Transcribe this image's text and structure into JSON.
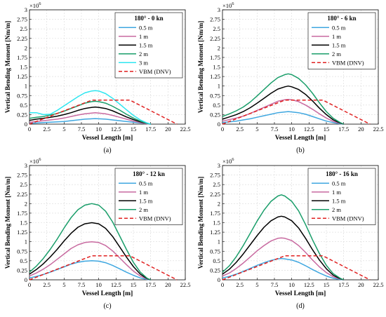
{
  "chart_data": [
    {
      "type": "line",
      "panel_label": "(a)",
      "title": "180° - 0 kn",
      "xlabel": "Vessel Length [m]",
      "ylabel": "Vertical Bending Moment [Nm/m]",
      "y_exponent": "×10",
      "y_exponent_power": "6",
      "xlim": [
        0,
        22.5
      ],
      "ylim": [
        0,
        3
      ],
      "x_ticks": [
        "0",
        "2.5",
        "5",
        "7.5",
        "10",
        "12.5",
        "15",
        "17.5",
        "20",
        "22.5"
      ],
      "y_ticks": [
        "0",
        "0.25",
        "0.5",
        "0.75",
        "1",
        "1.25",
        "1.5",
        "1.75",
        "2",
        "2.25",
        "2.5",
        "2.75",
        "3"
      ],
      "grid": true,
      "legend_position": "top-right",
      "series": [
        {
          "name": "0.5 m",
          "color": "#3fa7e0",
          "style": "solid",
          "x": [
            0,
            1,
            2,
            3,
            4,
            5,
            6,
            7,
            8,
            9,
            9.5,
            10,
            11,
            12,
            13,
            14,
            15,
            16,
            17,
            17.5
          ],
          "y": [
            0.02,
            0.03,
            0.04,
            0.05,
            0.06,
            0.07,
            0.09,
            0.11,
            0.13,
            0.14,
            0.145,
            0.14,
            0.13,
            0.11,
            0.09,
            0.07,
            0.05,
            0.03,
            0.01,
            0
          ]
        },
        {
          "name": "1 m",
          "color": "#c86aa0",
          "style": "solid",
          "x": [
            0,
            1,
            2,
            3,
            4,
            5,
            6,
            7,
            8,
            9,
            9.5,
            10,
            11,
            12,
            13,
            14,
            15,
            16,
            17,
            17.5
          ],
          "y": [
            0.05,
            0.07,
            0.09,
            0.11,
            0.13,
            0.16,
            0.2,
            0.24,
            0.27,
            0.29,
            0.3,
            0.29,
            0.27,
            0.23,
            0.18,
            0.13,
            0.08,
            0.04,
            0.01,
            0
          ]
        },
        {
          "name": "1.5 m",
          "color": "#000000",
          "style": "solid",
          "x": [
            0,
            1,
            2,
            3,
            4,
            5,
            6,
            7,
            8,
            9,
            9.5,
            10,
            11,
            12,
            13,
            14,
            15,
            16,
            17,
            17.5
          ],
          "y": [
            0.1,
            0.13,
            0.15,
            0.18,
            0.21,
            0.25,
            0.3,
            0.36,
            0.41,
            0.44,
            0.45,
            0.44,
            0.41,
            0.35,
            0.27,
            0.19,
            0.12,
            0.06,
            0.02,
            0
          ]
        },
        {
          "name": "2 m",
          "color": "#1a9e6a",
          "style": "solid",
          "x": [
            0,
            1,
            2,
            3,
            4,
            5,
            6,
            7,
            8,
            9,
            9.5,
            10,
            11,
            12,
            13,
            14,
            15,
            16,
            17,
            17.5
          ],
          "y": [
            0.15,
            0.18,
            0.2,
            0.24,
            0.28,
            0.34,
            0.41,
            0.48,
            0.55,
            0.59,
            0.6,
            0.59,
            0.55,
            0.47,
            0.37,
            0.26,
            0.16,
            0.08,
            0.02,
            0
          ]
        },
        {
          "name": "3 m",
          "color": "#2ee6f0",
          "style": "solid",
          "x": [
            0,
            1,
            2,
            3,
            4,
            5,
            6,
            7,
            8,
            9,
            9.5,
            10,
            11,
            12,
            13,
            14,
            15,
            16,
            17,
            17.5
          ],
          "y": [
            0.3,
            0.3,
            0.25,
            0.26,
            0.36,
            0.48,
            0.6,
            0.72,
            0.82,
            0.87,
            0.88,
            0.87,
            0.8,
            0.68,
            0.53,
            0.38,
            0.23,
            0.11,
            0.03,
            0
          ]
        },
        {
          "name": "VBM (DNV)",
          "color": "#e02020",
          "style": "dashed",
          "x": [
            0,
            9,
            14.5,
            21.3
          ],
          "y": [
            0,
            0.63,
            0.63,
            0
          ]
        }
      ]
    },
    {
      "type": "line",
      "panel_label": "(b)",
      "title": "180° - 6 kn",
      "xlabel": "Vessel Length [m]",
      "ylabel": "Vertical Bending Moment [Nm/m]",
      "y_exponent": "×10",
      "y_exponent_power": "6",
      "xlim": [
        0,
        22.5
      ],
      "ylim": [
        0,
        3
      ],
      "x_ticks": [
        "0",
        "2.5",
        "5",
        "7.5",
        "10",
        "12.5",
        "15",
        "17.5",
        "20",
        "22.5"
      ],
      "y_ticks": [
        "0",
        "0.25",
        "0.5",
        "0.75",
        "1",
        "1.25",
        "1.5",
        "1.75",
        "2",
        "2.25",
        "2.5",
        "2.75",
        "3"
      ],
      "grid": true,
      "legend_position": "top-right",
      "series": [
        {
          "name": "0.5 m",
          "color": "#3fa7e0",
          "style": "solid",
          "x": [
            0,
            1,
            2,
            3,
            4,
            5,
            6,
            7,
            8,
            9,
            9.5,
            10,
            11,
            12,
            13,
            14,
            15,
            16,
            17,
            17.5
          ],
          "y": [
            0.04,
            0.06,
            0.08,
            0.11,
            0.14,
            0.18,
            0.22,
            0.26,
            0.3,
            0.32,
            0.33,
            0.32,
            0.3,
            0.26,
            0.2,
            0.14,
            0.08,
            0.04,
            0.01,
            0
          ]
        },
        {
          "name": "1 m",
          "color": "#c86aa0",
          "style": "solid",
          "x": [
            0,
            1,
            2,
            3,
            4,
            5,
            6,
            7,
            8,
            9,
            9.5,
            10,
            11,
            12,
            13,
            14,
            15,
            16,
            17,
            17.5
          ],
          "y": [
            0.08,
            0.12,
            0.16,
            0.21,
            0.28,
            0.36,
            0.44,
            0.52,
            0.6,
            0.64,
            0.65,
            0.64,
            0.59,
            0.5,
            0.39,
            0.27,
            0.16,
            0.07,
            0.02,
            0
          ]
        },
        {
          "name": "1.5 m",
          "color": "#000000",
          "style": "solid",
          "x": [
            0,
            1,
            2,
            3,
            4,
            5,
            6,
            7,
            8,
            9,
            9.5,
            10,
            11,
            12,
            13,
            14,
            15,
            16,
            17,
            17.5
          ],
          "y": [
            0.13,
            0.19,
            0.25,
            0.33,
            0.43,
            0.55,
            0.68,
            0.81,
            0.92,
            0.98,
            1.0,
            0.98,
            0.91,
            0.78,
            0.61,
            0.42,
            0.25,
            0.11,
            0.03,
            0
          ]
        },
        {
          "name": "2 m",
          "color": "#1a9e6a",
          "style": "solid",
          "x": [
            0,
            1,
            2,
            3,
            4,
            5,
            6,
            7,
            8,
            9,
            9.5,
            10,
            11,
            12,
            13,
            14,
            15,
            16,
            17,
            17.5
          ],
          "y": [
            0.2,
            0.27,
            0.35,
            0.45,
            0.58,
            0.74,
            0.91,
            1.08,
            1.22,
            1.3,
            1.32,
            1.3,
            1.2,
            1.03,
            0.81,
            0.56,
            0.33,
            0.15,
            0.04,
            0
          ]
        },
        {
          "name": "VBM (DNV)",
          "color": "#e02020",
          "style": "dashed",
          "x": [
            0,
            9,
            14.5,
            21.3
          ],
          "y": [
            0,
            0.63,
            0.63,
            0
          ]
        }
      ]
    },
    {
      "type": "line",
      "panel_label": "(c)",
      "title": "180° - 12 kn",
      "xlabel": "Vessel Length [m]",
      "ylabel": "Vertical Bending Moment [Nm/m]",
      "y_exponent": "×10",
      "y_exponent_power": "6",
      "xlim": [
        0,
        22.5
      ],
      "ylim": [
        0,
        3
      ],
      "x_ticks": [
        "0",
        "2.5",
        "5",
        "7.5",
        "10",
        "12.5",
        "15",
        "17.5",
        "20",
        "22.5"
      ],
      "y_ticks": [
        "0",
        "0.25",
        "0.5",
        "0.75",
        "1",
        "1.25",
        "1.5",
        "1.75",
        "2",
        "2.25",
        "2.5",
        "2.75",
        "3"
      ],
      "grid": true,
      "legend_position": "top-right",
      "series": [
        {
          "name": "0.5 m",
          "color": "#3fa7e0",
          "style": "solid",
          "x": [
            0,
            1,
            2,
            3,
            4,
            5,
            6,
            7,
            8,
            9,
            10,
            11,
            12,
            13,
            14,
            15,
            16,
            17,
            17.5
          ],
          "y": [
            0.05,
            0.09,
            0.14,
            0.2,
            0.27,
            0.34,
            0.41,
            0.46,
            0.49,
            0.5,
            0.49,
            0.45,
            0.38,
            0.29,
            0.2,
            0.12,
            0.05,
            0.01,
            0
          ]
        },
        {
          "name": "1 m",
          "color": "#c86aa0",
          "style": "solid",
          "x": [
            0,
            1,
            2,
            3,
            4,
            5,
            6,
            7,
            8,
            9,
            10,
            11,
            12,
            13,
            14,
            15,
            16,
            17,
            17.5
          ],
          "y": [
            0.1,
            0.18,
            0.28,
            0.4,
            0.54,
            0.68,
            0.82,
            0.92,
            0.98,
            1.0,
            0.98,
            0.9,
            0.76,
            0.58,
            0.4,
            0.23,
            0.1,
            0.02,
            0
          ]
        },
        {
          "name": "1.5 m",
          "color": "#000000",
          "style": "solid",
          "x": [
            0,
            1,
            2,
            3,
            4,
            5,
            6,
            7,
            8,
            9,
            10,
            11,
            12,
            13,
            14,
            15,
            16,
            17,
            17.5
          ],
          "y": [
            0.15,
            0.27,
            0.42,
            0.6,
            0.8,
            1.02,
            1.22,
            1.38,
            1.47,
            1.5,
            1.47,
            1.35,
            1.14,
            0.87,
            0.6,
            0.35,
            0.15,
            0.03,
            0
          ]
        },
        {
          "name": "2 m",
          "color": "#1a9e6a",
          "style": "solid",
          "x": [
            0,
            1,
            2,
            3,
            4,
            5,
            6,
            7,
            8,
            9,
            10,
            11,
            12,
            13,
            14,
            15,
            16,
            17,
            17.5
          ],
          "y": [
            0.2,
            0.36,
            0.56,
            0.8,
            1.07,
            1.36,
            1.63,
            1.84,
            1.96,
            2.0,
            1.96,
            1.8,
            1.52,
            1.16,
            0.8,
            0.46,
            0.2,
            0.04,
            0
          ]
        },
        {
          "name": "VBM (DNV)",
          "color": "#e02020",
          "style": "dashed",
          "x": [
            0,
            9,
            14.5,
            21.3
          ],
          "y": [
            0,
            0.63,
            0.63,
            0
          ]
        }
      ]
    },
    {
      "type": "line",
      "panel_label": "(d)",
      "title": "180° - 16 kn",
      "xlabel": "Vessel Length [m]",
      "ylabel": "Vertical Bending Moment [Nm/m]",
      "y_exponent": "×10",
      "y_exponent_power": "6",
      "xlim": [
        0,
        22.5
      ],
      "ylim": [
        0,
        3
      ],
      "x_ticks": [
        "0",
        "2.5",
        "5",
        "7.5",
        "10",
        "12.5",
        "15",
        "17.5",
        "20",
        "22.5"
      ],
      "y_ticks": [
        "0",
        "0.25",
        "0.5",
        "0.75",
        "1",
        "1.25",
        "1.5",
        "1.75",
        "2",
        "2.25",
        "2.5",
        "2.75",
        "3"
      ],
      "grid": true,
      "legend_position": "top-right",
      "series": [
        {
          "name": "0.5 m",
          "color": "#3fa7e0",
          "style": "solid",
          "x": [
            0,
            1,
            2,
            3,
            4,
            5,
            6,
            7,
            8,
            8.5,
            9,
            10,
            11,
            12,
            13,
            14,
            15,
            16,
            17,
            17.5
          ],
          "y": [
            0.05,
            0.09,
            0.15,
            0.22,
            0.3,
            0.38,
            0.45,
            0.51,
            0.55,
            0.56,
            0.55,
            0.52,
            0.46,
            0.37,
            0.27,
            0.18,
            0.1,
            0.04,
            0.01,
            0
          ]
        },
        {
          "name": "1 m",
          "color": "#c86aa0",
          "style": "solid",
          "x": [
            0,
            1,
            2,
            3,
            4,
            5,
            6,
            7,
            8,
            8.5,
            9,
            10,
            11,
            12,
            13,
            14,
            15,
            16,
            17,
            17.5
          ],
          "y": [
            0.1,
            0.18,
            0.3,
            0.44,
            0.6,
            0.76,
            0.9,
            1.02,
            1.09,
            1.1,
            1.09,
            1.03,
            0.9,
            0.72,
            0.52,
            0.34,
            0.19,
            0.08,
            0.02,
            0
          ]
        },
        {
          "name": "1.5 m",
          "color": "#000000",
          "style": "solid",
          "x": [
            0,
            1,
            2,
            3,
            4,
            5,
            6,
            7,
            8,
            8.5,
            9,
            10,
            11,
            12,
            13,
            14,
            15,
            16,
            17,
            17.5
          ],
          "y": [
            0.15,
            0.28,
            0.46,
            0.68,
            0.92,
            1.16,
            1.38,
            1.55,
            1.65,
            1.67,
            1.65,
            1.55,
            1.36,
            1.09,
            0.79,
            0.52,
            0.29,
            0.12,
            0.03,
            0
          ]
        },
        {
          "name": "2 m",
          "color": "#1a9e6a",
          "style": "solid",
          "x": [
            0,
            1,
            2,
            3,
            4,
            5,
            6,
            7,
            8,
            8.5,
            9,
            10,
            11,
            12,
            13,
            14,
            15,
            16,
            17,
            17.5
          ],
          "y": [
            0.2,
            0.37,
            0.61,
            0.9,
            1.22,
            1.54,
            1.83,
            2.06,
            2.2,
            2.23,
            2.2,
            2.06,
            1.81,
            1.45,
            1.05,
            0.69,
            0.38,
            0.16,
            0.04,
            0
          ]
        },
        {
          "name": "VBM (DNV)",
          "color": "#e02020",
          "style": "dashed",
          "x": [
            0,
            9,
            14.5,
            21.3
          ],
          "y": [
            0,
            0.63,
            0.63,
            0
          ]
        }
      ]
    }
  ]
}
